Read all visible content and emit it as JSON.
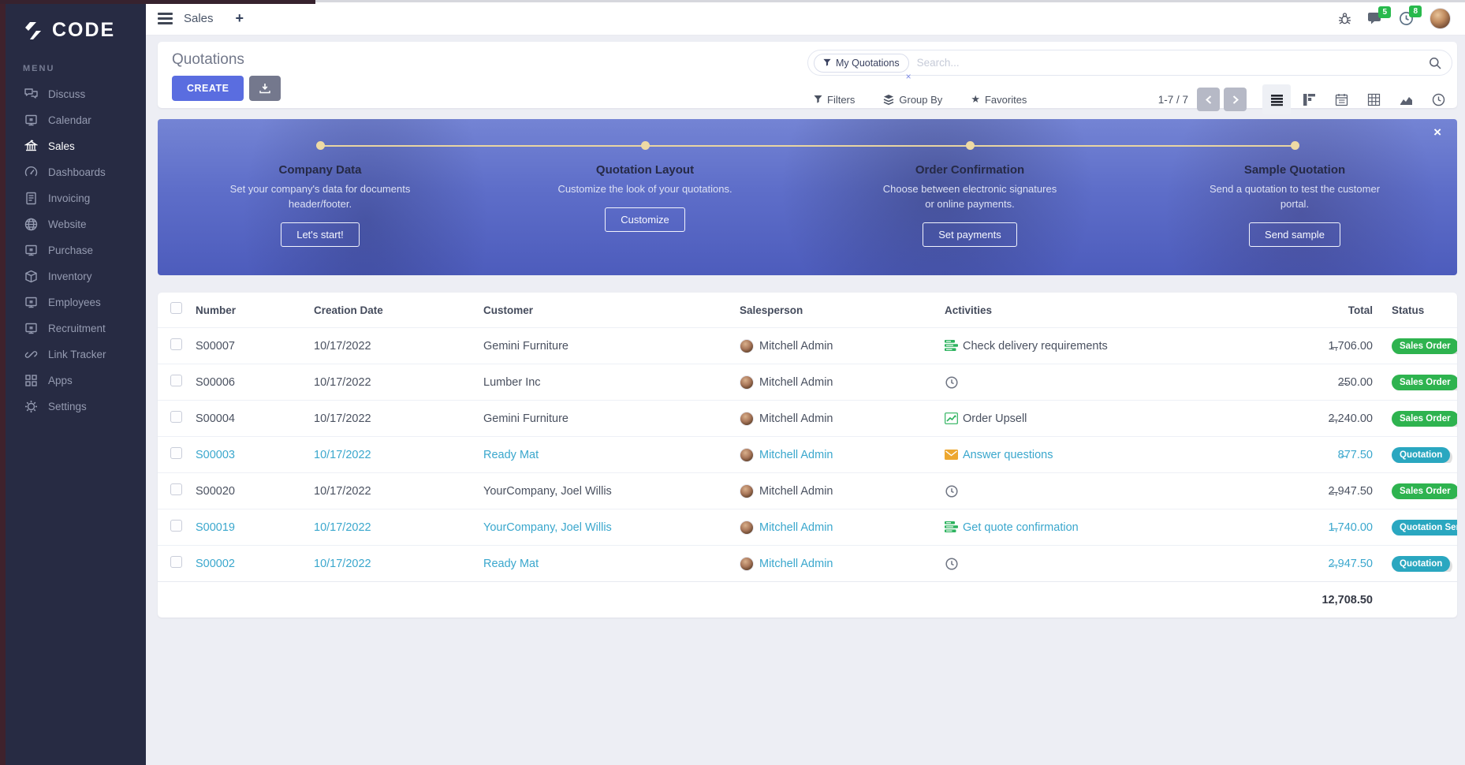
{
  "app": {
    "logo_text": "CODE"
  },
  "topbar": {
    "active_app": "Sales",
    "new_tab_label": "+",
    "message_count": "5",
    "activity_count": "8"
  },
  "sidebar": {
    "section_label": "MENU",
    "items": [
      {
        "label": "Discuss",
        "icon": "chat",
        "active": false
      },
      {
        "label": "Calendar",
        "icon": "window",
        "active": false
      },
      {
        "label": "Sales",
        "icon": "bank",
        "active": true
      },
      {
        "label": "Dashboards",
        "icon": "gauge",
        "active": false
      },
      {
        "label": "Invoicing",
        "icon": "invoice",
        "active": false
      },
      {
        "label": "Website",
        "icon": "globe",
        "active": false
      },
      {
        "label": "Purchase",
        "icon": "window",
        "active": false
      },
      {
        "label": "Inventory",
        "icon": "box",
        "active": false
      },
      {
        "label": "Employees",
        "icon": "window",
        "active": false
      },
      {
        "label": "Recruitment",
        "icon": "window",
        "active": false
      },
      {
        "label": "Link Tracker",
        "icon": "link",
        "active": false
      },
      {
        "label": "Apps",
        "icon": "grid",
        "active": false
      },
      {
        "label": "Settings",
        "icon": "gear",
        "active": false
      }
    ]
  },
  "control_panel": {
    "title": "Quotations",
    "create_label": "CREATE",
    "search": {
      "facet_label": "My Quotations",
      "facet_remove": "×",
      "placeholder": "Search..."
    },
    "filters_label": "Filters",
    "group_by_label": "Group By",
    "favorites_label": "Favorites",
    "favorites_star": "★",
    "pager": "1-7 / 7"
  },
  "banner": {
    "close_label": "×",
    "steps": [
      {
        "title": "Company Data",
        "description": "Set your company's data for documents header/footer.",
        "button": "Let's start!"
      },
      {
        "title": "Quotation Layout",
        "description": "Customize the look of your quotations.",
        "button": "Customize"
      },
      {
        "title": "Order Confirmation",
        "description": "Choose between electronic signatures or online payments.",
        "button": "Set payments"
      },
      {
        "title": "Sample Quotation",
        "description": "Send a quotation to test the customer portal.",
        "button": "Send sample"
      }
    ]
  },
  "table": {
    "columns": [
      "Number",
      "Creation Date",
      "Customer",
      "Salesperson",
      "Activities",
      "Total",
      "Status"
    ],
    "rows": [
      {
        "number": "S00007",
        "date": "10/17/2022",
        "customer": "Gemini Furniture",
        "salesperson": "Mitchell Admin",
        "activity": {
          "icon": "tasks",
          "label": "Check delivery requirements"
        },
        "total": "1̶,706.00",
        "status": "Sales Order",
        "highlight": false
      },
      {
        "number": "S00006",
        "date": "10/17/2022",
        "customer": "Lumber Inc",
        "salesperson": "Mitchell Admin",
        "activity": {
          "icon": "clock",
          "label": ""
        },
        "total": "2̶50.00",
        "status": "Sales Order",
        "highlight": false
      },
      {
        "number": "S00004",
        "date": "10/17/2022",
        "customer": "Gemini Furniture",
        "salesperson": "Mitchell Admin",
        "activity": {
          "icon": "chart",
          "label": "Order Upsell"
        },
        "total": "2̶,240.00",
        "status": "Sales Order",
        "highlight": false
      },
      {
        "number": "S00003",
        "date": "10/17/2022",
        "customer": "Ready Mat",
        "salesperson": "Mitchell Admin",
        "activity": {
          "icon": "envelope",
          "label": "Answer questions"
        },
        "total": "8̶77.50",
        "status": "Quotation",
        "highlight": true
      },
      {
        "number": "S00020",
        "date": "10/17/2022",
        "customer": "YourCompany, Joel Willis",
        "salesperson": "Mitchell Admin",
        "activity": {
          "icon": "clock",
          "label": ""
        },
        "total": "2̶,947.50",
        "status": "Sales Order",
        "highlight": false
      },
      {
        "number": "S00019",
        "date": "10/17/2022",
        "customer": "YourCompany, Joel Willis",
        "salesperson": "Mitchell Admin",
        "activity": {
          "icon": "tasks",
          "label": "Get quote confirmation"
        },
        "total": "1̶,740.00",
        "status": "Quotation Sent",
        "highlight": true
      },
      {
        "number": "S00002",
        "date": "10/17/2022",
        "customer": "Ready Mat",
        "salesperson": "Mitchell Admin",
        "activity": {
          "icon": "clock",
          "label": ""
        },
        "total": "2̶,947.50",
        "status": "Quotation",
        "highlight": true
      }
    ],
    "footer_total": "12,708.50"
  }
}
